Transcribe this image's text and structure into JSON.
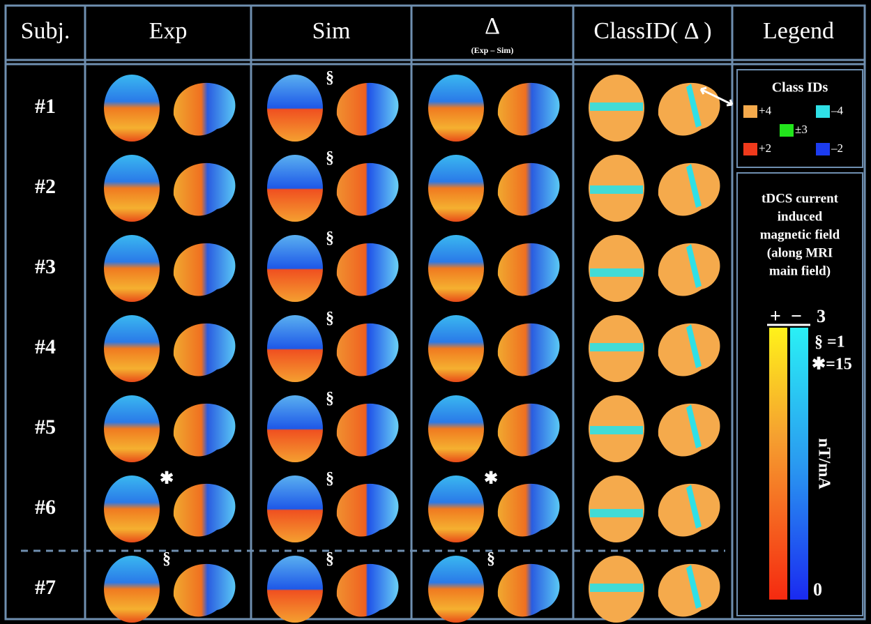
{
  "header": {
    "columns": [
      "Subj.",
      "Exp",
      "Sim",
      "Δ",
      "ClassID( Δ )",
      "Legend"
    ],
    "delta_subtitle": "(Exp – Sim)"
  },
  "rows": [
    {
      "label": "#1",
      "sim": "§"
    },
    {
      "label": "#2",
      "sim": "§"
    },
    {
      "label": "#3",
      "sim": "§"
    },
    {
      "label": "#4",
      "sim": "§"
    },
    {
      "label": "#5",
      "sim": "§"
    },
    {
      "label": "#6",
      "exp": "✱",
      "sim": "§",
      "delta": "✱"
    },
    {
      "label": "#7",
      "exp": "§",
      "sim": "§",
      "delta": "§"
    }
  ],
  "legend": {
    "class_title": "Class IDs",
    "classes": [
      {
        "label": "+4",
        "color": "#f5aa4c"
      },
      {
        "label": "–4",
        "color": "#2fe0e6"
      },
      {
        "label": "±3",
        "color": "#22e51c"
      },
      {
        "label": "+2",
        "color": "#f03a1c"
      },
      {
        "label": "–2",
        "color": "#1c3cf0"
      }
    ],
    "colorbar": {
      "title_lines": [
        "tDCS current",
        "induced",
        "magnetic field",
        "(along MRI",
        "main field)"
      ],
      "plus": "+",
      "minus": "−",
      "max": "3",
      "sim_scale": "§ =1",
      "exp_scale": "✱=15",
      "unit": "nT/mA",
      "min": "0"
    }
  }
}
